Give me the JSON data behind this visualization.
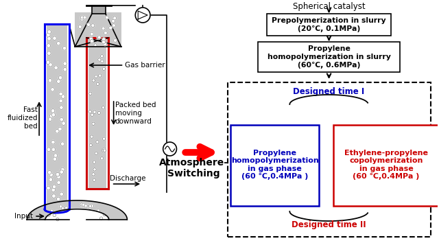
{
  "bg_color": "#ffffff",
  "left_panel": {
    "fast_fluidized_label": "Fast\nfluidized\nbed",
    "input_label": "Input",
    "discharge_label": "Discharge",
    "gas_barrier_label": "Gas barrier",
    "packed_bed_label": "Packed bed\nmoving\ndownward",
    "atmosphere_label": "Atmosphere-\nSwitching"
  },
  "right_panel": {
    "catalyst_label": "Spherical catalyst",
    "box1_text": "Prepolymerization in slurry\n(20℃, 0.1MPa)",
    "box2_text": "Propylene\nhomopolymerization in slurry\n(60℃, 0.6MPa)",
    "dashed_box_label_top": "Designed time I",
    "dashed_box_label_bottom": "Designed time II",
    "box3_text": "Propylene\nhomopolymerization\nin gas phase\n(60 ℃,0.4MPa )",
    "box4_text": "Ethylene-propylene\ncopolymerization\nin gas phase\n(60 ℃,0.4MPa )",
    "box3_color": "#0000bb",
    "box4_color": "#cc0000",
    "designed_time_I_color": "#0000bb",
    "designed_time_II_color": "#cc0000",
    "arrow_color": "#000000",
    "big_arrow_color": "#ff0000"
  }
}
